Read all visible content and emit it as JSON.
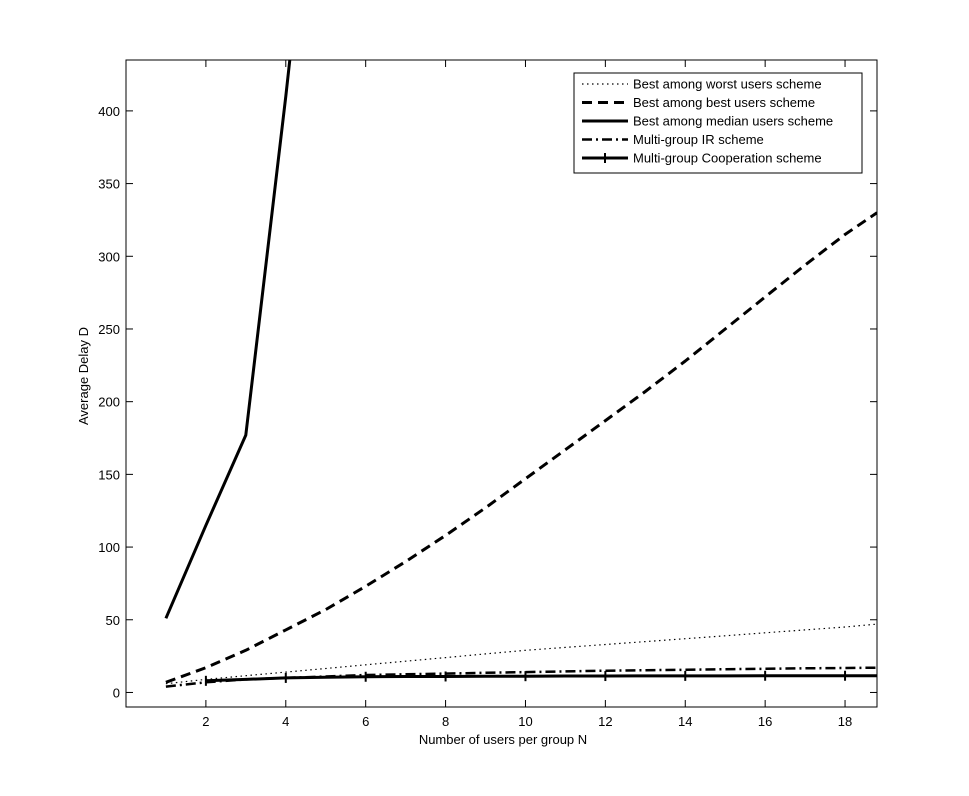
{
  "chart_data": {
    "type": "line",
    "title": "",
    "xlabel": "Number of users per group N",
    "ylabel": "Average Delay D",
    "xlim": [
      0,
      18.8
    ],
    "ylim": [
      -10,
      435
    ],
    "xticks": [
      2,
      4,
      6,
      8,
      10,
      12,
      14,
      16,
      18
    ],
    "yticks": [
      0,
      50,
      100,
      150,
      200,
      250,
      300,
      350,
      400
    ],
    "grid": false,
    "legend_position": "top-right",
    "series": [
      {
        "name": "Best among worst users scheme",
        "style": "dotted",
        "x": [
          1,
          2,
          3,
          4,
          5,
          6,
          7,
          8,
          9,
          10,
          11,
          12,
          13,
          14,
          15,
          16,
          17,
          18,
          18.8
        ],
        "y": [
          6,
          9,
          11.5,
          14,
          16.5,
          19,
          21.5,
          24,
          26.5,
          29,
          31,
          33,
          35,
          37,
          39,
          41,
          43,
          45,
          47
        ]
      },
      {
        "name": "Best among best users scheme",
        "style": "dashed",
        "x": [
          1,
          2,
          3,
          4,
          5,
          6,
          7,
          8,
          9,
          10,
          11,
          12,
          13,
          14,
          15,
          16,
          17,
          18,
          18.8
        ],
        "y": [
          7,
          17,
          29,
          43,
          57,
          73,
          90,
          108,
          127,
          147,
          167,
          187,
          207,
          228,
          250,
          272,
          294,
          315,
          330
        ]
      },
      {
        "name": "Best among median users scheme",
        "style": "solid",
        "x": [
          1,
          2,
          3,
          4,
          4.1
        ],
        "y": [
          51,
          115,
          177,
          410,
          435
        ]
      },
      {
        "name": "Multi-group IR scheme",
        "style": "dashdot",
        "x": [
          1,
          2,
          3,
          4,
          5,
          6,
          7,
          8,
          9,
          10,
          11,
          12,
          13,
          14,
          15,
          16,
          17,
          18,
          18.8
        ],
        "y": [
          4,
          7,
          9,
          10,
          11,
          12,
          12.5,
          13,
          13.5,
          14,
          14.5,
          15,
          15.3,
          15.6,
          16,
          16.3,
          16.6,
          16.8,
          17
        ]
      },
      {
        "name": "Multi-group Cooperation scheme",
        "style": "solid-plus",
        "x": [
          2,
          3,
          4,
          5,
          6,
          7,
          8,
          9,
          10,
          11,
          12,
          13,
          14,
          15,
          16,
          17,
          18,
          18.8
        ],
        "y": [
          8,
          9,
          10,
          10.5,
          10.8,
          11,
          11,
          11.2,
          11.2,
          11.3,
          11.3,
          11.4,
          11.4,
          11.4,
          11.5,
          11.5,
          11.5,
          11.5
        ]
      }
    ]
  }
}
